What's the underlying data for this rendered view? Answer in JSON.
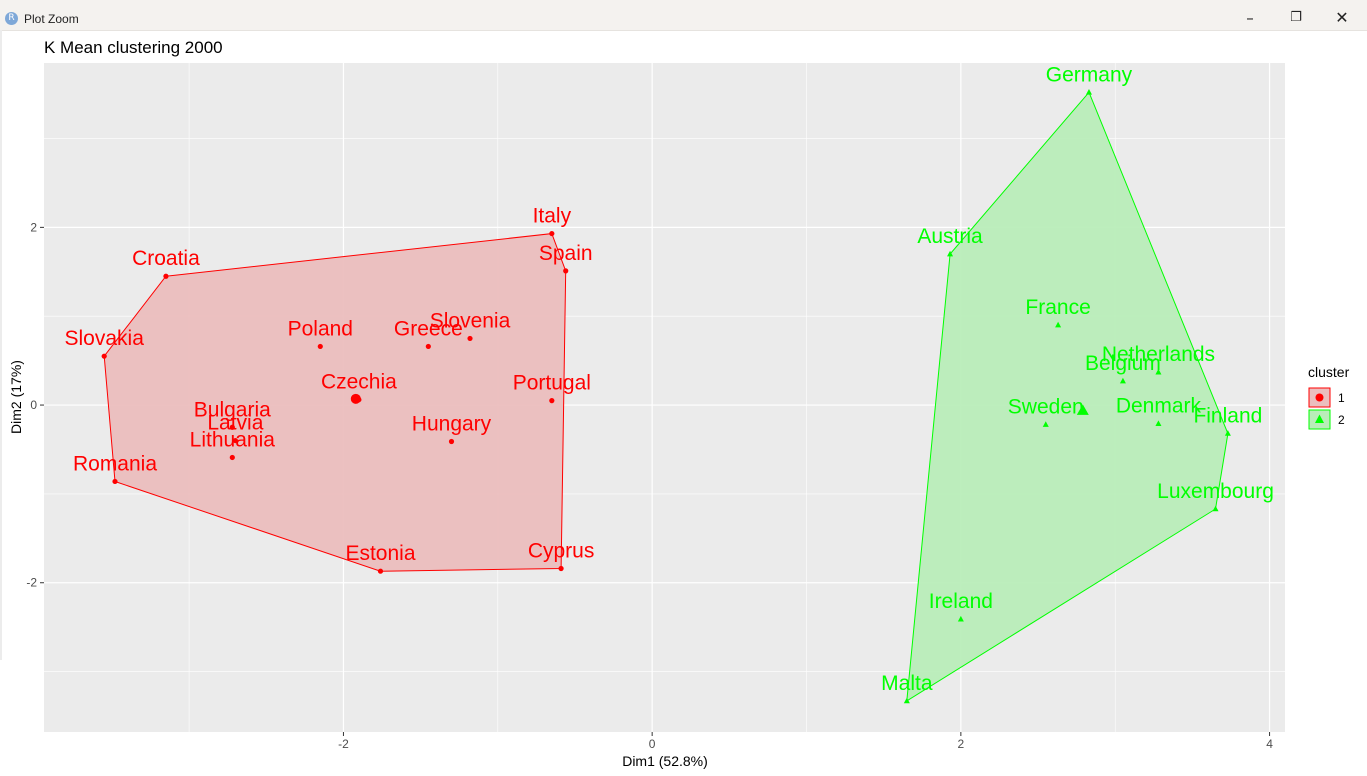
{
  "window": {
    "title": "Plot Zoom",
    "icon": "R",
    "controls": {
      "minimize": "–",
      "maximize": "❐",
      "close": "✕"
    }
  },
  "colors": {
    "cluster1": "#ff0000",
    "cluster1_fill": "#ebbebe",
    "cluster2": "#00ff00",
    "cluster2_fill": "#b9edb9",
    "panel": "#ebebeb",
    "grid": "#ffffff"
  },
  "chart_data": {
    "type": "scatter",
    "title": "K Mean clustering 2000",
    "xlabel": "Dim1 (52.8%)",
    "ylabel": "Dim2 (17%)",
    "xlim": [
      -3.94,
      4.1
    ],
    "ylim": [
      -3.68,
      3.85
    ],
    "xticks": [
      -2,
      0,
      2,
      4
    ],
    "xtick_labels": [
      "-2",
      "0",
      "2",
      "4"
    ],
    "yticks": [
      -2,
      0,
      2
    ],
    "ytick_labels": [
      "-2",
      "0",
      "2"
    ],
    "grid": true,
    "legend": {
      "title": "cluster",
      "position": "right",
      "entries": [
        "1",
        "2"
      ]
    },
    "series": [
      {
        "name": "1",
        "marker": "circle",
        "points": [
          {
            "label": "Croatia",
            "x": -3.15,
            "y": 1.45
          },
          {
            "label": "Italy",
            "x": -0.65,
            "y": 1.93
          },
          {
            "label": "Spain",
            "x": -0.56,
            "y": 1.51
          },
          {
            "label": "Slovakia",
            "x": -3.55,
            "y": 0.55
          },
          {
            "label": "Poland",
            "x": -2.15,
            "y": 0.66
          },
          {
            "label": "Greece",
            "x": -1.45,
            "y": 0.66
          },
          {
            "label": "Slovenia",
            "x": -1.18,
            "y": 0.75
          },
          {
            "label": "Portugal",
            "x": -0.65,
            "y": 0.05
          },
          {
            "label": "Czechia",
            "x": -1.9,
            "y": 0.06
          },
          {
            "label": "Hungary",
            "x": -1.3,
            "y": -0.41
          },
          {
            "label": "Bulgaria",
            "x": -2.72,
            "y": -0.25
          },
          {
            "label": "Latvia",
            "x": -2.7,
            "y": -0.4
          },
          {
            "label": "Lithuania",
            "x": -2.72,
            "y": -0.59
          },
          {
            "label": "Romania",
            "x": -3.48,
            "y": -0.86
          },
          {
            "label": "Estonia",
            "x": -1.76,
            "y": -1.87
          },
          {
            "label": "Cyprus",
            "x": -0.59,
            "y": -1.84
          }
        ],
        "hull": [
          "Croatia",
          "Italy",
          "Spain",
          "Cyprus",
          "Estonia",
          "Romania",
          "Slovakia"
        ],
        "center": {
          "x": -1.92,
          "y": 0.07
        }
      },
      {
        "name": "2",
        "marker": "triangle",
        "points": [
          {
            "label": "Germany",
            "x": 2.83,
            "y": 3.52
          },
          {
            "label": "Austria",
            "x": 1.93,
            "y": 1.7
          },
          {
            "label": "France",
            "x": 2.63,
            "y": 0.9
          },
          {
            "label": "Netherlands",
            "x": 3.28,
            "y": 0.37
          },
          {
            "label": "Belgium",
            "x": 3.05,
            "y": 0.27
          },
          {
            "label": "Sweden",
            "x": 2.55,
            "y": -0.22
          },
          {
            "label": "Denmark",
            "x": 3.28,
            "y": -0.21
          },
          {
            "label": "Finland",
            "x": 3.73,
            "y": -0.32
          },
          {
            "label": "Luxembourg",
            "x": 3.65,
            "y": -1.17
          },
          {
            "label": "Ireland",
            "x": 2.0,
            "y": -2.41
          },
          {
            "label": "Malta",
            "x": 1.65,
            "y": -3.33
          }
        ],
        "hull": [
          "Germany",
          "Finland",
          "Luxembourg",
          "Malta",
          "Austria"
        ],
        "center": {
          "x": 2.79,
          "y": -0.06
        }
      }
    ]
  }
}
